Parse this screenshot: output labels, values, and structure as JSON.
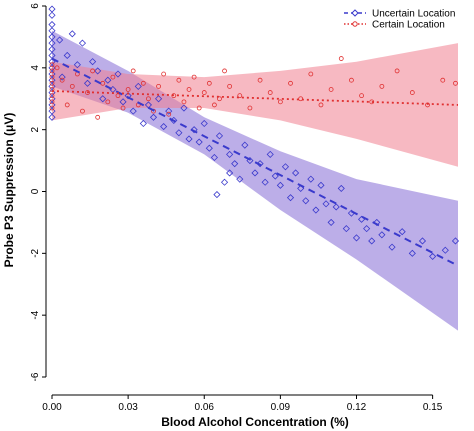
{
  "chart_data": {
    "type": "scatter",
    "title": "",
    "xlabel": "Blood Alcohol Concentration (%)",
    "ylabel": "Probe P3 Suppression (μV)",
    "xlim": [
      0.0,
      0.16
    ],
    "ylim": [
      -6,
      6
    ],
    "x_ticks": [
      "0.00",
      "0.03",
      "0.06",
      "0.09",
      "0.12",
      "0.15"
    ],
    "y_ticks": [
      "-6",
      "-4",
      "-2",
      "0",
      "2",
      "4",
      "6"
    ],
    "grid": false,
    "legend_position": "top-right",
    "series": [
      {
        "name": "Uncertain Location",
        "color": "#3a3acc",
        "band_color": "#8f78d8",
        "marker": "diamond",
        "line_style": "dashed",
        "fit": {
          "x": [
            0.0,
            0.16
          ],
          "y": [
            4.3,
            -2.4
          ]
        },
        "band": {
          "x": [
            0.0,
            0.03,
            0.06,
            0.09,
            0.12,
            0.16
          ],
          "lower": [
            3.4,
            2.55,
            1.2,
            -0.6,
            -2.2,
            -4.5
          ],
          "upper": [
            5.2,
            3.9,
            2.4,
            1.3,
            0.4,
            -0.3
          ]
        },
        "points": [
          [
            0.0,
            5.9
          ],
          [
            0.0,
            5.7
          ],
          [
            0.0,
            5.4
          ],
          [
            0.0,
            5.2
          ],
          [
            0.0,
            5.0
          ],
          [
            0.0,
            4.8
          ],
          [
            0.0,
            4.6
          ],
          [
            0.0,
            4.4
          ],
          [
            0.0,
            4.2
          ],
          [
            0.0,
            4.0
          ],
          [
            0.0,
            3.8
          ],
          [
            0.0,
            3.6
          ],
          [
            0.0,
            3.4
          ],
          [
            0.0,
            3.2
          ],
          [
            0.0,
            3.0
          ],
          [
            0.0,
            2.8
          ],
          [
            0.0,
            2.6
          ],
          [
            0.0,
            2.4
          ],
          [
            0.003,
            4.9
          ],
          [
            0.004,
            3.7
          ],
          [
            0.006,
            4.4
          ],
          [
            0.008,
            5.1
          ],
          [
            0.01,
            4.1
          ],
          [
            0.012,
            4.8
          ],
          [
            0.014,
            3.5
          ],
          [
            0.016,
            4.2
          ],
          [
            0.018,
            3.9
          ],
          [
            0.02,
            3.0
          ],
          [
            0.022,
            3.6
          ],
          [
            0.024,
            3.3
          ],
          [
            0.026,
            3.8
          ],
          [
            0.028,
            2.9
          ],
          [
            0.03,
            3.1
          ],
          [
            0.032,
            2.6
          ],
          [
            0.034,
            3.4
          ],
          [
            0.036,
            2.2
          ],
          [
            0.038,
            2.8
          ],
          [
            0.04,
            2.4
          ],
          [
            0.042,
            3.0
          ],
          [
            0.044,
            2.1
          ],
          [
            0.046,
            2.6
          ],
          [
            0.048,
            2.3
          ],
          [
            0.05,
            1.9
          ],
          [
            0.052,
            2.7
          ],
          [
            0.054,
            1.7
          ],
          [
            0.056,
            2.0
          ],
          [
            0.058,
            1.6
          ],
          [
            0.06,
            2.2
          ],
          [
            0.062,
            1.4
          ],
          [
            0.064,
            1.1
          ],
          [
            0.066,
            1.8
          ],
          [
            0.068,
            0.3
          ],
          [
            0.07,
            1.2
          ],
          [
            0.072,
            0.9
          ],
          [
            0.074,
            0.4
          ],
          [
            0.076,
            1.5
          ],
          [
            0.078,
            1.0
          ],
          [
            0.08,
            0.6
          ],
          [
            0.082,
            0.9
          ],
          [
            0.084,
            0.3
          ],
          [
            0.086,
            1.2
          ],
          [
            0.088,
            0.5
          ],
          [
            0.09,
            0.2
          ],
          [
            0.092,
            0.8
          ],
          [
            0.094,
            -0.2
          ],
          [
            0.096,
            0.6
          ],
          [
            0.098,
            0.1
          ],
          [
            0.1,
            -0.3
          ],
          [
            0.102,
            0.4
          ],
          [
            0.104,
            -0.6
          ],
          [
            0.106,
            0.2
          ],
          [
            0.108,
            -0.4
          ],
          [
            0.11,
            -1.0
          ],
          [
            0.112,
            -0.5
          ],
          [
            0.114,
            0.1
          ],
          [
            0.116,
            -1.2
          ],
          [
            0.118,
            -0.7
          ],
          [
            0.12,
            -1.5
          ],
          [
            0.122,
            -0.9
          ],
          [
            0.124,
            -1.2
          ],
          [
            0.126,
            -1.6
          ],
          [
            0.128,
            -1.0
          ],
          [
            0.13,
            -1.4
          ],
          [
            0.134,
            -1.8
          ],
          [
            0.138,
            -1.3
          ],
          [
            0.142,
            -2.0
          ],
          [
            0.146,
            -1.6
          ],
          [
            0.15,
            -2.1
          ],
          [
            0.155,
            -1.9
          ],
          [
            0.159,
            -1.6
          ],
          [
            0.065,
            -0.1
          ],
          [
            0.07,
            0.6
          ]
        ]
      },
      {
        "name": "Certain Location",
        "color": "#e03030",
        "band_color": "#f08090",
        "marker": "circle",
        "line_style": "dotted",
        "fit": {
          "x": [
            0.0,
            0.16
          ],
          "y": [
            3.25,
            2.8
          ]
        },
        "band": {
          "x": [
            0.0,
            0.03,
            0.06,
            0.09,
            0.12,
            0.16
          ],
          "lower": [
            2.3,
            2.7,
            2.7,
            2.3,
            1.7,
            0.8
          ],
          "upper": [
            4.2,
            3.8,
            3.7,
            3.9,
            4.2,
            4.8
          ]
        },
        "points": [
          [
            0.0,
            4.1
          ],
          [
            0.0,
            3.9
          ],
          [
            0.0,
            3.7
          ],
          [
            0.0,
            3.5
          ],
          [
            0.0,
            3.3
          ],
          [
            0.0,
            3.1
          ],
          [
            0.0,
            2.9
          ],
          [
            0.0,
            2.7
          ],
          [
            0.002,
            4.0
          ],
          [
            0.004,
            3.6
          ],
          [
            0.006,
            2.8
          ],
          [
            0.008,
            3.4
          ],
          [
            0.01,
            3.8
          ],
          [
            0.012,
            2.6
          ],
          [
            0.014,
            3.2
          ],
          [
            0.016,
            3.9
          ],
          [
            0.018,
            2.4
          ],
          [
            0.02,
            3.5
          ],
          [
            0.022,
            2.9
          ],
          [
            0.024,
            3.7
          ],
          [
            0.026,
            3.1
          ],
          [
            0.028,
            2.7
          ],
          [
            0.03,
            3.3
          ],
          [
            0.032,
            3.9
          ],
          [
            0.034,
            2.8
          ],
          [
            0.036,
            3.5
          ],
          [
            0.038,
            3.0
          ],
          [
            0.04,
            2.6
          ],
          [
            0.042,
            3.4
          ],
          [
            0.044,
            3.8
          ],
          [
            0.046,
            2.5
          ],
          [
            0.048,
            3.1
          ],
          [
            0.05,
            3.6
          ],
          [
            0.052,
            2.9
          ],
          [
            0.054,
            3.3
          ],
          [
            0.056,
            3.7
          ],
          [
            0.058,
            2.7
          ],
          [
            0.06,
            3.2
          ],
          [
            0.062,
            3.5
          ],
          [
            0.064,
            2.8
          ],
          [
            0.066,
            3.0
          ],
          [
            0.068,
            3.9
          ],
          [
            0.07,
            3.4
          ],
          [
            0.074,
            3.1
          ],
          [
            0.078,
            2.7
          ],
          [
            0.082,
            3.6
          ],
          [
            0.086,
            3.2
          ],
          [
            0.09,
            2.9
          ],
          [
            0.094,
            3.5
          ],
          [
            0.098,
            3.0
          ],
          [
            0.102,
            3.8
          ],
          [
            0.106,
            2.8
          ],
          [
            0.11,
            3.3
          ],
          [
            0.114,
            4.3
          ],
          [
            0.118,
            3.6
          ],
          [
            0.122,
            3.1
          ],
          [
            0.126,
            2.9
          ],
          [
            0.13,
            3.4
          ],
          [
            0.136,
            3.9
          ],
          [
            0.142,
            3.2
          ],
          [
            0.148,
            2.8
          ],
          [
            0.154,
            3.6
          ],
          [
            0.159,
            3.5
          ]
        ]
      }
    ]
  }
}
